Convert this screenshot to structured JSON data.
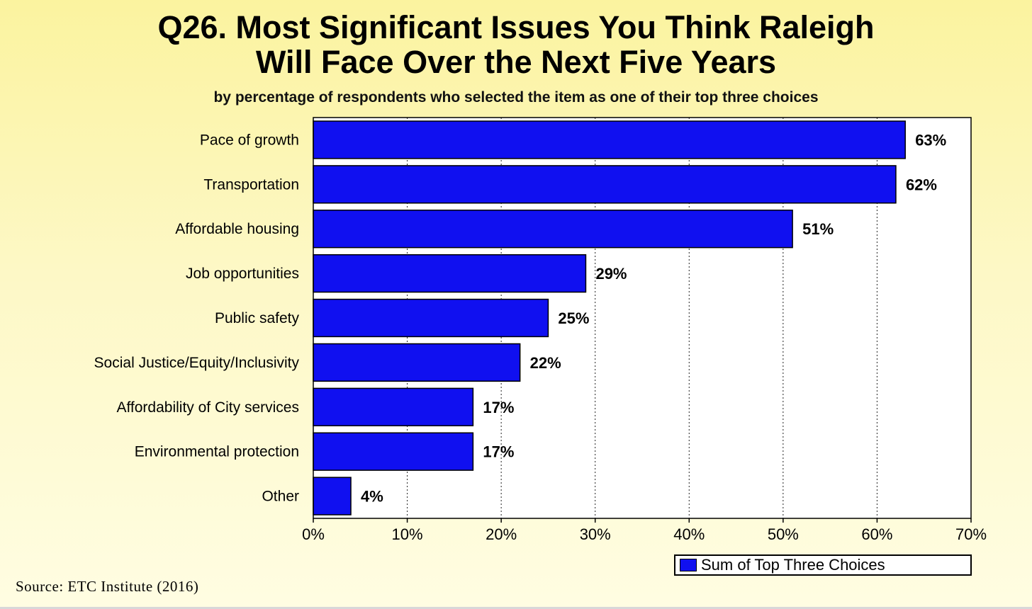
{
  "title_line1": "Q26. Most Significant Issues You Think Raleigh",
  "title_line2": "Will Face Over the Next Five Years",
  "subtitle": "by percentage of respondents who selected the item as one of their top three choices",
  "source": "Source:  ETC Institute (2016)",
  "chart_data": {
    "type": "bar",
    "orientation": "horizontal",
    "title": "Q26. Most Significant Issues You Think Raleigh Will Face Over the Next Five Years",
    "subtitle": "by percentage of respondents who selected the item as one of their top three choices",
    "categories": [
      "Pace of growth",
      "Transportation",
      "Affordable housing",
      "Job opportunities",
      "Public safety",
      "Social Justice/Equity/Inclusivity",
      "Affordability of City services",
      "Environmental protection",
      "Other"
    ],
    "values": [
      63,
      62,
      51,
      29,
      25,
      22,
      17,
      17,
      4
    ],
    "value_labels": [
      "63%",
      "62%",
      "51%",
      "29%",
      "25%",
      "22%",
      "17%",
      "17%",
      "4%"
    ],
    "series_name": "Sum of Top Three Choices",
    "xlim": [
      0,
      70
    ],
    "x_ticks": [
      0,
      10,
      20,
      30,
      40,
      50,
      60,
      70
    ],
    "x_tick_labels": [
      "0%",
      "10%",
      "20%",
      "30%",
      "40%",
      "50%",
      "60%",
      "70%"
    ],
    "grid": true,
    "legend_position": "bottom-right",
    "bar_color": "#1010f0"
  }
}
